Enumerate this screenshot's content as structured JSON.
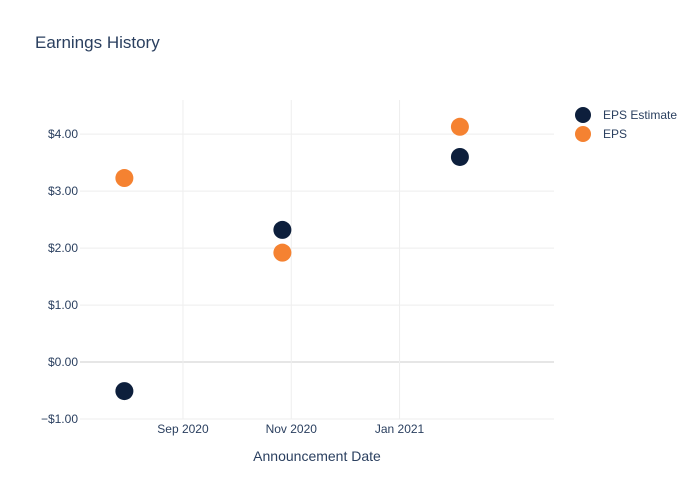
{
  "chart_data": {
    "type": "scatter",
    "title": "Earnings History",
    "xlabel": "Announcement Date",
    "ylabel": "",
    "ylim": [
      -1,
      4.6
    ],
    "xlim": [
      "2020-07-05",
      "2021-03-29"
    ],
    "yticks": [
      -1,
      0,
      1,
      2,
      3,
      4
    ],
    "ytick_labels": [
      "−$1.00",
      "$0.00",
      "$1.00",
      "$2.00",
      "$3.00",
      "$4.00"
    ],
    "xticks": [
      "2020-09-01",
      "2020-11-01",
      "2021-01-01"
    ],
    "xtick_labels": [
      "Sep 2020",
      "Nov 2020",
      "Jan 2021"
    ],
    "grid": true,
    "legend_position": "top-right",
    "series": [
      {
        "name": "EPS Estimate",
        "color": "#0d1f3c",
        "points": [
          {
            "x": "2020-07-30",
            "y": -0.51
          },
          {
            "x": "2020-10-27",
            "y": 2.32
          },
          {
            "x": "2021-02-04",
            "y": 3.6
          }
        ]
      },
      {
        "name": "EPS",
        "color": "#f58231",
        "points": [
          {
            "x": "2020-07-30",
            "y": 3.23
          },
          {
            "x": "2020-10-27",
            "y": 1.92
          },
          {
            "x": "2021-02-04",
            "y": 4.13
          }
        ]
      }
    ]
  }
}
